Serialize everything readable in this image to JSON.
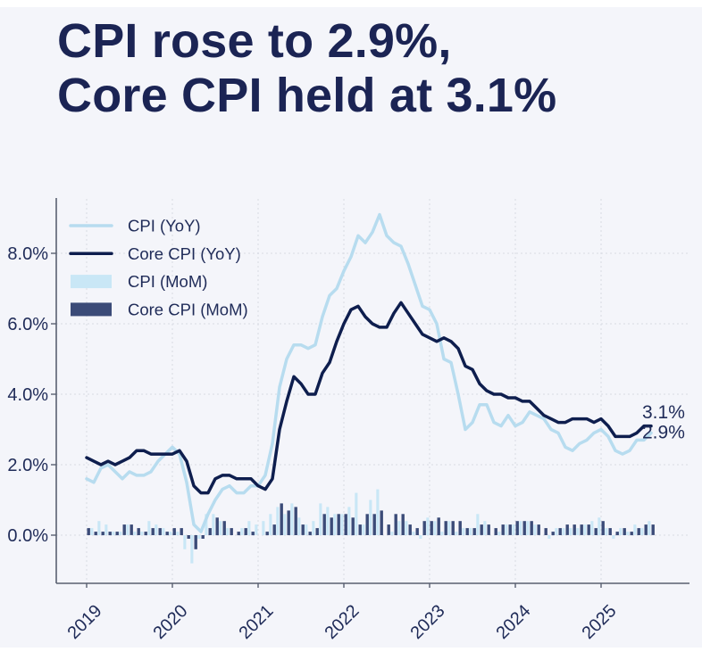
{
  "page": {
    "background_color": "#f4f5fa",
    "text_color": "#1b2454"
  },
  "title": {
    "line1": "CPI rose to 2.9%,",
    "line2": "Core CPI held at 3.1%"
  },
  "chart_data": {
    "type": "line+bar combo",
    "x_start": "2019-01",
    "x_end": "2025-08",
    "months_per_point": 1,
    "x_tick_labels": [
      "2019",
      "2020",
      "2021",
      "2022",
      "2023",
      "2024",
      "2025"
    ],
    "y_ticks": [
      0,
      2,
      4,
      6,
      8
    ],
    "y_tick_labels": [
      "0.0%",
      "2.0%",
      "4.0%",
      "6.0%",
      "8.0%"
    ],
    "ylim": [
      -1.4,
      9.6
    ],
    "grid": true,
    "legend_position": "top-left",
    "colors": {
      "cpi_yoy_line": "#b7dcef",
      "core_cpi_yoy_line": "#0e1e4e",
      "cpi_mom_bar": "#c9e7f6",
      "core_cpi_mom_bar": "#3b4b78",
      "gridline": "#d8dae3",
      "spine": "#596070",
      "tick_text": "#1f2b58"
    },
    "series": [
      {
        "name": "CPI (YoY)",
        "type": "line",
        "color": "#b7dcef",
        "values": [
          1.6,
          1.5,
          1.9,
          2.0,
          1.8,
          1.6,
          1.8,
          1.7,
          1.7,
          1.8,
          2.1,
          2.3,
          2.5,
          2.3,
          1.5,
          0.3,
          0.1,
          0.6,
          1.0,
          1.3,
          1.4,
          1.2,
          1.2,
          1.4,
          1.4,
          1.7,
          2.6,
          4.2,
          5.0,
          5.4,
          5.4,
          5.3,
          5.4,
          6.2,
          6.8,
          7.0,
          7.5,
          7.9,
          8.5,
          8.3,
          8.6,
          9.1,
          8.5,
          8.3,
          8.2,
          7.7,
          7.1,
          6.5,
          6.4,
          6.0,
          5.0,
          4.9,
          4.0,
          3.0,
          3.2,
          3.7,
          3.7,
          3.2,
          3.1,
          3.4,
          3.1,
          3.2,
          3.5,
          3.4,
          3.3,
          3.0,
          2.9,
          2.5,
          2.4,
          2.6,
          2.7,
          2.9,
          3.0,
          2.8,
          2.4,
          2.3,
          2.4,
          2.7,
          2.7,
          2.9
        ]
      },
      {
        "name": "Core CPI (YoY)",
        "type": "line",
        "color": "#0e1e4e",
        "values": [
          2.2,
          2.1,
          2.0,
          2.1,
          2.0,
          2.1,
          2.2,
          2.4,
          2.4,
          2.3,
          2.3,
          2.3,
          2.3,
          2.4,
          2.1,
          1.4,
          1.2,
          1.2,
          1.6,
          1.7,
          1.7,
          1.6,
          1.6,
          1.6,
          1.4,
          1.3,
          1.6,
          3.0,
          3.8,
          4.5,
          4.3,
          4.0,
          4.0,
          4.6,
          4.9,
          5.5,
          6.0,
          6.4,
          6.5,
          6.2,
          6.0,
          5.9,
          5.9,
          6.3,
          6.6,
          6.3,
          6.0,
          5.7,
          5.6,
          5.5,
          5.6,
          5.5,
          5.3,
          4.8,
          4.7,
          4.3,
          4.1,
          4.0,
          4.0,
          3.9,
          3.9,
          3.8,
          3.8,
          3.6,
          3.4,
          3.3,
          3.2,
          3.2,
          3.3,
          3.3,
          3.3,
          3.2,
          3.3,
          3.1,
          2.8,
          2.8,
          2.8,
          2.9,
          3.1,
          3.1
        ]
      },
      {
        "name": "CPI (MoM)",
        "type": "bar",
        "color": "#c9e7f6",
        "values": [
          0.0,
          0.2,
          0.4,
          0.3,
          0.1,
          0.1,
          0.3,
          0.1,
          0.1,
          0.4,
          0.3,
          0.2,
          0.1,
          0.1,
          -0.4,
          -0.8,
          -0.1,
          0.6,
          0.6,
          0.4,
          0.2,
          0.0,
          0.2,
          0.4,
          0.3,
          0.4,
          0.6,
          0.8,
          0.6,
          0.9,
          0.5,
          0.3,
          0.4,
          0.9,
          0.8,
          0.6,
          0.6,
          0.8,
          1.2,
          0.3,
          1.0,
          1.3,
          0.0,
          0.1,
          0.4,
          0.4,
          0.1,
          -0.1,
          0.5,
          0.4,
          0.1,
          0.4,
          0.1,
          0.2,
          0.2,
          0.6,
          0.4,
          0.0,
          0.1,
          0.3,
          0.3,
          0.4,
          0.4,
          0.3,
          0.0,
          -0.1,
          0.2,
          0.2,
          0.2,
          0.2,
          0.3,
          0.4,
          0.5,
          0.2,
          -0.1,
          0.2,
          0.1,
          0.3,
          0.2,
          0.4
        ]
      },
      {
        "name": "Core CPI (MoM)",
        "type": "bar",
        "color": "#3b4b78",
        "values": [
          0.2,
          0.1,
          0.1,
          0.1,
          0.1,
          0.3,
          0.3,
          0.2,
          0.1,
          0.2,
          0.2,
          0.1,
          0.2,
          0.2,
          -0.1,
          -0.4,
          -0.1,
          0.2,
          0.5,
          0.4,
          0.2,
          0.1,
          0.2,
          0.1,
          0.0,
          0.1,
          0.3,
          0.9,
          0.7,
          0.8,
          0.3,
          0.1,
          0.2,
          0.6,
          0.5,
          0.6,
          0.6,
          0.5,
          0.3,
          0.6,
          0.6,
          0.7,
          0.3,
          0.6,
          0.6,
          0.3,
          0.2,
          0.4,
          0.4,
          0.5,
          0.4,
          0.4,
          0.4,
          0.2,
          0.2,
          0.3,
          0.3,
          0.2,
          0.3,
          0.3,
          0.4,
          0.4,
          0.4,
          0.3,
          0.2,
          0.1,
          0.2,
          0.3,
          0.3,
          0.3,
          0.3,
          0.2,
          0.4,
          0.2,
          0.1,
          0.2,
          0.1,
          0.2,
          0.3,
          0.3
        ]
      }
    ],
    "annotations": [
      {
        "text": "3.1%",
        "refers_to": "Core CPI (YoY)"
      },
      {
        "text": "2.9%",
        "refers_to": "CPI (YoY)"
      }
    ]
  }
}
